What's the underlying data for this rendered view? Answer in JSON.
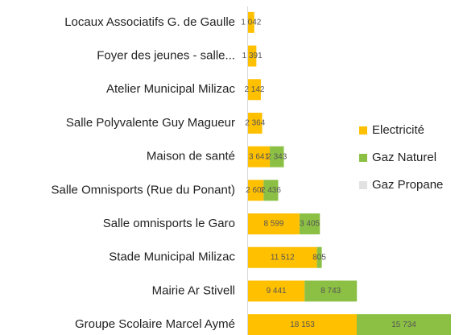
{
  "chart_data": {
    "type": "stacked-barh",
    "categories": [
      "Locaux Associatifs G. de Gaulle",
      "Foyer des jeunes - salle...",
      "Atelier Municipal Milizac",
      "Salle Polyvalente Guy Magueur",
      "Maison de santé",
      "Salle Omnisports (Rue du Ponant)",
      "Salle omnisports le Garo",
      "Stade Municipal Milizac",
      "Mairie Ar Stivell",
      "Groupe Scolaire Marcel Aymé"
    ],
    "series": [
      {
        "name": "Electricité",
        "color": "#ffc000",
        "values": [
          1042,
          1391,
          2142,
          2364,
          3641,
          2600,
          8599,
          11512,
          9441,
          18153
        ],
        "value_labels": [
          "1 042",
          "1 391",
          "2 142",
          "2 364",
          "3 641",
          "2 600",
          "8 599",
          "11 512",
          "9 441",
          "18 153"
        ]
      },
      {
        "name": "Gaz Naturel",
        "color": "#8cc044",
        "values": [
          null,
          null,
          null,
          null,
          2343,
          2436,
          3405,
          805,
          8743,
          15734
        ],
        "value_labels": [
          null,
          null,
          null,
          null,
          "2 343",
          "2 436",
          "3 405",
          "805",
          "8 743",
          "15 734"
        ]
      },
      {
        "name": "Gaz Propane",
        "color": "#e2e2e2",
        "values": [
          null,
          null,
          null,
          null,
          null,
          null,
          null,
          null,
          null,
          null
        ]
      }
    ],
    "legend": "right"
  }
}
